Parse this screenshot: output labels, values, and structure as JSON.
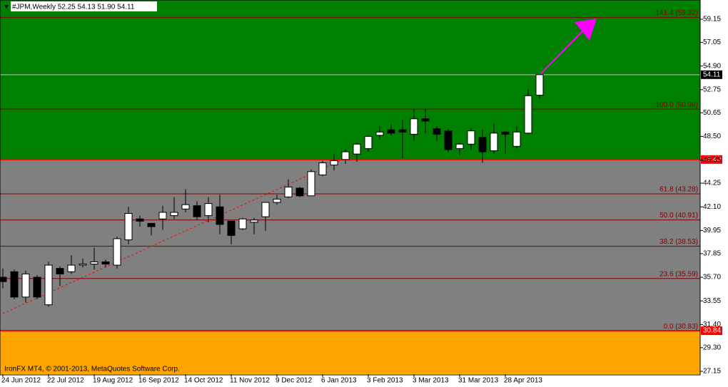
{
  "chart_data": {
    "type": "candlestick",
    "title": "#JPM,Weekly  52.25 54.13 51.90 54.11",
    "footer": "IronFX MT4, © 2001-2013, MetaQuotes Software Corp.",
    "categories": [
      "24 Jun 2012",
      null,
      null,
      null,
      "22 Jul 2012",
      null,
      null,
      null,
      "19 Aug 2012",
      null,
      null,
      null,
      "16 Sep 2012",
      null,
      null,
      null,
      "14 Oct 2012",
      null,
      null,
      null,
      "11 Nov 2012",
      null,
      null,
      null,
      "9 Dec 2012",
      null,
      null,
      null,
      "6 Jan 2013",
      null,
      null,
      null,
      "3 Feb 2013",
      null,
      null,
      null,
      "3 Mar 2013",
      null,
      null,
      null,
      "31 Mar 2013",
      null,
      null,
      null,
      "28 Apr 2013",
      null,
      null,
      null
    ],
    "open": [
      35.7,
      36.2,
      33.9,
      35.7,
      33.2,
      36.5,
      36.2,
      36.8,
      36.9,
      37.1,
      36.8,
      39.1,
      41.0,
      40.6,
      41.0,
      41.3,
      41.9,
      42.2,
      41.3,
      42.1,
      40.8,
      40.1,
      40.7,
      41.2,
      42.5,
      43.0,
      43.8,
      43.1,
      45.0,
      45.9,
      46.4,
      46.9,
      47.4,
      48.6,
      49.1,
      49.1,
      48.7,
      50.1,
      49.2,
      49.0,
      47.4,
      47.8,
      48.4,
      47.2,
      48.9,
      47.6,
      48.8,
      52.25
    ],
    "high": [
      36.5,
      36.4,
      36.3,
      35.9,
      37.1,
      36.7,
      37.7,
      37.4,
      38.4,
      37.3,
      39.4,
      42.1,
      41.3,
      40.6,
      42.2,
      43.0,
      43.7,
      42.6,
      43.0,
      43.2,
      40.8,
      41.1,
      41.1,
      42.5,
      43.2,
      44.6,
      43.9,
      45.5,
      46.3,
      46.9,
      47.3,
      47.9,
      48.6,
      49.4,
      49.6,
      50.0,
      51.0,
      51.0,
      49.4,
      49.2,
      47.9,
      49.3,
      49.1,
      49.7,
      49.0,
      49.4,
      52.8,
      54.13
    ],
    "low": [
      34.7,
      33.7,
      33.4,
      33.7,
      33.0,
      34.9,
      36.0,
      36.6,
      36.4,
      36.6,
      36.5,
      38.7,
      40.3,
      39.5,
      40.0,
      41.0,
      41.6,
      40.9,
      40.7,
      39.6,
      38.7,
      40.0,
      39.6,
      39.9,
      42.3,
      42.9,
      43.0,
      43.1,
      44.9,
      45.4,
      46.0,
      46.2,
      47.1,
      48.2,
      48.6,
      46.5,
      48.1,
      48.8,
      48.1,
      47.1,
      46.8,
      47.3,
      46.1,
      46.9,
      46.9,
      47.4,
      48.7,
      51.9
    ],
    "close": [
      35.3,
      33.9,
      36.0,
      33.9,
      36.8,
      36.0,
      36.8,
      36.9,
      37.1,
      36.9,
      39.2,
      41.5,
      40.8,
      40.3,
      41.6,
      41.6,
      42.3,
      41.2,
      42.4,
      40.5,
      39.5,
      41.0,
      40.9,
      42.5,
      42.8,
      43.9,
      43.1,
      45.3,
      46.1,
      46.3,
      47.1,
      47.8,
      48.5,
      48.9,
      48.8,
      48.9,
      50.1,
      49.9,
      48.7,
      47.3,
      47.8,
      49.0,
      47.1,
      48.8,
      48.7,
      48.9,
      52.2,
      54.11
    ],
    "up_color": "#ffffff",
    "down_color": "#000000",
    "ylim": [
      26.89,
      60.9
    ],
    "yticks": [
      59.15,
      57.05,
      {
        "value": 54.9,
        "label": "54.90"
      },
      52.75,
      50.65,
      {
        "value": 48.5,
        "label": "48.50"
      },
      46.35,
      44.25,
      {
        "value": 42.1,
        "label": "42.10"
      },
      39.95,
      37.85,
      {
        "value": 35.7,
        "label": "35.70"
      },
      33.55,
      {
        "value": 31.4,
        "label": "31.40"
      },
      {
        "value": 29.3,
        "label": "29.30"
      },
      27.15
    ],
    "zone_colors": [
      "#008000",
      "#808080",
      "#ffa500"
    ],
    "zone_bounds": [
      {
        "value": 46.4,
        "label": "46.40"
      },
      30.84
    ],
    "current_price": 54.11,
    "fib_levels": [
      {
        "value": 59.32,
        "label": "141.4 (59.32)"
      },
      {
        "value": 50.98,
        "label": "100.0 (50.98)"
      },
      {
        "value": 43.28,
        "label": "61.8 (43.28)"
      },
      {
        "value": 40.91,
        "label": "50.0 (40.91)"
      },
      {
        "value": 38.53,
        "label": "38.2 (38.53)"
      },
      {
        "value": 35.59,
        "label": "23.6 (35.59)"
      },
      {
        "value": 30.83,
        "label": "0.0 (30.83)"
      }
    ]
  }
}
